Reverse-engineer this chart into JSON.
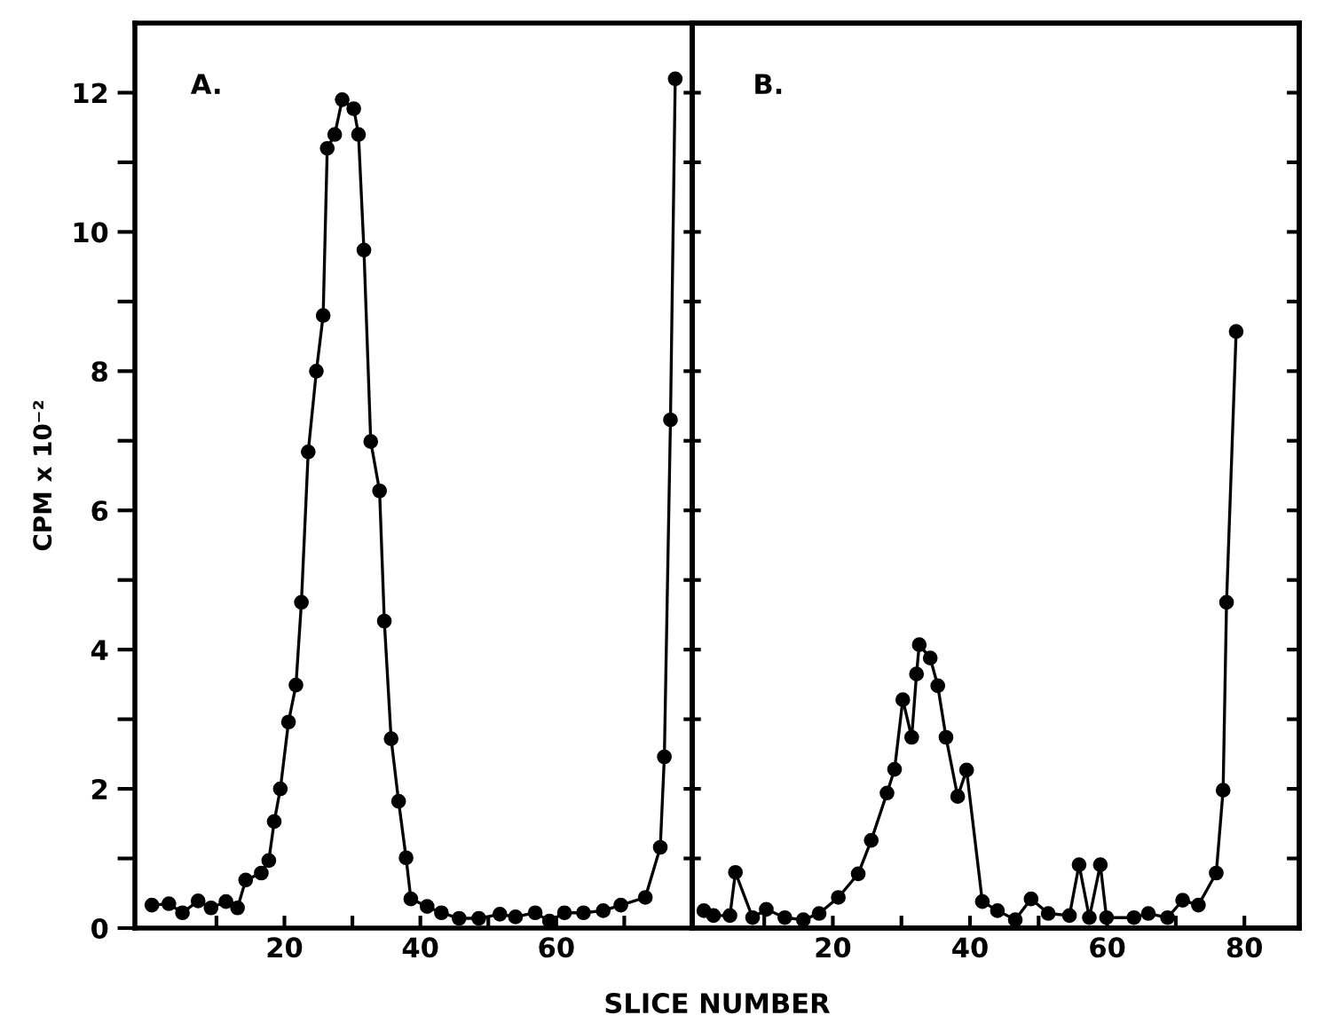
{
  "chart_data": [
    {
      "type": "line",
      "ylabel": "CPM x 10⁻²",
      "xlabel": "SLICE NUMBER",
      "annotations": [
        "A."
      ],
      "marker": "circle",
      "grid": false,
      "xlim": [
        -2,
        80
      ],
      "xticks": [
        {
          "value": 10,
          "label": null
        },
        20,
        {
          "value": 30,
          "label": null
        },
        40,
        {
          "value": 50,
          "label": null
        },
        60,
        {
          "value": 70,
          "label": null
        }
      ],
      "ylim": [
        0,
        13
      ],
      "yticks": [
        0,
        {
          "value": 1,
          "label": null
        },
        2,
        {
          "value": 3,
          "label": null
        },
        4,
        {
          "value": 5,
          "label": null
        },
        6,
        {
          "value": 7,
          "label": null
        },
        8,
        {
          "value": 9,
          "label": null
        },
        10,
        {
          "value": 11,
          "label": null
        },
        12
      ],
      "series": [
        {
          "color": "#000000",
          "x": [
            0.5,
            3.0,
            5.0,
            7.3,
            9.2,
            11.4,
            13.1,
            14.3,
            16.6,
            17.7,
            18.5,
            19.4,
            20.6,
            21.7,
            22.5,
            23.5,
            24.7,
            25.7,
            26.3,
            27.4,
            28.5,
            30.2,
            30.9,
            31.7,
            32.7,
            34.0,
            34.7,
            35.7,
            36.8,
            37.9,
            38.6,
            41.0,
            43.1,
            45.7,
            48.6,
            51.7,
            54.0,
            56.9,
            59.0,
            61.2,
            64.0,
            66.9,
            69.5,
            73.1,
            75.3,
            75.9,
            76.8,
            77.5
          ],
          "values": [
            0.33,
            0.35,
            0.22,
            0.39,
            0.29,
            0.38,
            0.29,
            0.69,
            0.79,
            0.97,
            1.53,
            2.0,
            2.96,
            3.49,
            4.68,
            6.84,
            8.0,
            8.8,
            11.2,
            11.4,
            11.9,
            11.77,
            11.4,
            9.74,
            6.99,
            6.28,
            4.41,
            2.72,
            1.82,
            1.01,
            0.42,
            0.31,
            0.22,
            0.14,
            0.14,
            0.2,
            0.16,
            0.22,
            0.1,
            0.22,
            0.22,
            0.25,
            0.33,
            0.44,
            1.16,
            2.46,
            7.3,
            12.2
          ]
        }
      ]
    },
    {
      "type": "line",
      "annotations": [
        "B."
      ],
      "marker": "circle",
      "grid": false,
      "tick_labels": "x",
      "xlim": [
        -0.5,
        88
      ],
      "xticks": [
        {
          "value": 10,
          "label": null
        },
        20,
        {
          "value": 30,
          "label": null
        },
        40,
        {
          "value": 50,
          "label": null
        },
        60,
        {
          "value": 70,
          "label": null
        },
        80
      ],
      "ylim": [
        0,
        13
      ],
      "yticks": [
        {
          "value": 1,
          "label": null
        },
        {
          "value": 2,
          "label": null
        },
        {
          "value": 3,
          "label": null
        },
        {
          "value": 4,
          "label": null
        },
        {
          "value": 5,
          "label": null
        },
        {
          "value": 6,
          "label": null
        },
        {
          "value": 7,
          "label": null
        },
        {
          "value": 8,
          "label": null
        },
        {
          "value": 9,
          "label": null
        },
        {
          "value": 10,
          "label": null
        },
        {
          "value": 11,
          "label": null
        },
        {
          "value": 12,
          "label": null
        }
      ],
      "series": [
        {
          "color": "#000000",
          "x": [
            1.2,
            2.6,
            5.0,
            5.8,
            8.3,
            10.3,
            13.0,
            15.7,
            18.0,
            20.8,
            23.7,
            25.6,
            27.9,
            29.0,
            30.2,
            31.5,
            32.2,
            32.6,
            34.2,
            35.3,
            36.5,
            38.2,
            39.5,
            41.8,
            44.0,
            46.6,
            48.9,
            51.4,
            54.5,
            55.9,
            57.4,
            59.0,
            59.9,
            63.9,
            66.0,
            68.8,
            71.0,
            73.3,
            75.9,
            76.9,
            77.4,
            78.8
          ],
          "values": [
            0.25,
            0.18,
            0.18,
            0.8,
            0.15,
            0.27,
            0.15,
            0.12,
            0.21,
            0.44,
            0.78,
            1.26,
            1.94,
            2.28,
            3.28,
            2.74,
            3.65,
            4.07,
            3.88,
            3.48,
            2.74,
            1.89,
            2.27,
            0.38,
            0.25,
            0.12,
            0.42,
            0.21,
            0.18,
            0.91,
            0.15,
            0.91,
            0.15,
            0.15,
            0.21,
            0.15,
            0.4,
            0.33,
            0.79,
            1.98,
            4.68,
            8.57
          ]
        }
      ]
    }
  ]
}
